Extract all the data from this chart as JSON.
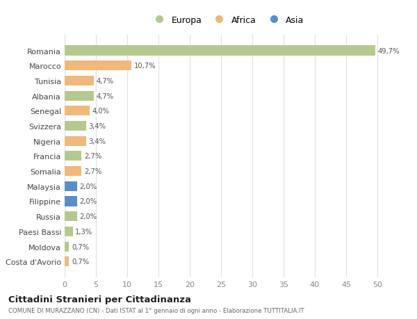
{
  "countries": [
    "Romania",
    "Marocco",
    "Tunisia",
    "Albania",
    "Senegal",
    "Svizzera",
    "Nigeria",
    "Francia",
    "Somalia",
    "Malaysia",
    "Filippine",
    "Russia",
    "Paesi Bassi",
    "Moldova",
    "Costa d'Avorio"
  ],
  "values": [
    49.7,
    10.7,
    4.7,
    4.7,
    4.0,
    3.4,
    3.4,
    2.7,
    2.7,
    2.0,
    2.0,
    2.0,
    1.3,
    0.7,
    0.7
  ],
  "labels": [
    "49,7%",
    "10,7%",
    "4,7%",
    "4,7%",
    "4,0%",
    "3,4%",
    "3,4%",
    "2,7%",
    "2,7%",
    "2,0%",
    "2,0%",
    "2,0%",
    "1,3%",
    "0,7%",
    "0,7%"
  ],
  "categories": [
    "Europa",
    "Africa",
    "Asia"
  ],
  "continent": [
    "Europa",
    "Africa",
    "Africa",
    "Europa",
    "Africa",
    "Europa",
    "Africa",
    "Europa",
    "Africa",
    "Asia",
    "Asia",
    "Europa",
    "Europa",
    "Europa",
    "Africa"
  ],
  "colors": {
    "Europa": "#b5c98e",
    "Africa": "#f0b87a",
    "Asia": "#5b8ec4"
  },
  "bg_color": "#ffffff",
  "grid_color": "#e0e0e0",
  "title": "Cittadini Stranieri per Cittadinanza",
  "subtitle": "COMUNE DI MURAZZANO (CN) - Dati ISTAT al 1° gennaio di ogni anno - Elaborazione TUTTITALIA.IT",
  "xlim": [
    0,
    52
  ],
  "xticks": [
    0,
    5,
    10,
    15,
    20,
    25,
    30,
    35,
    40,
    45,
    50
  ]
}
